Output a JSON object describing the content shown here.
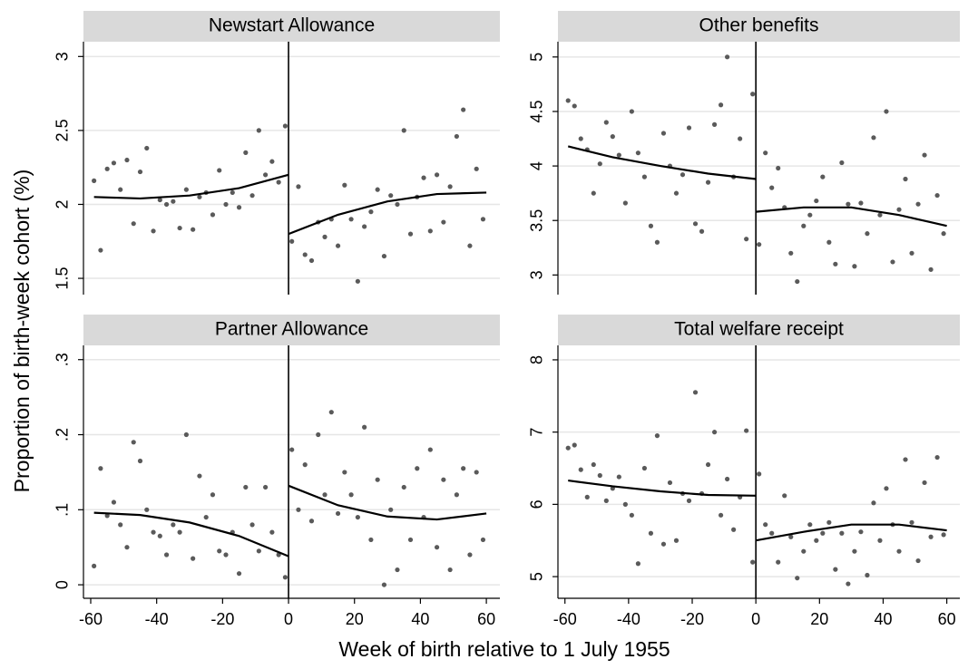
{
  "ylabel": "Proportion of birth-week cohort (%)",
  "xlabel": "Week of birth relative to 1 July 1955",
  "chart_data": [
    {
      "type": "scatter",
      "title": "Newstart Allowance",
      "xlim": [
        -62.2,
        64.1
      ],
      "ylim": [
        1.39,
        3.1
      ],
      "yticks": [
        1.5,
        2,
        2.5,
        3
      ],
      "grid": true,
      "vline": 0,
      "series": [
        {
          "type": "scatter",
          "color": "#5a5a5a",
          "x": [
            -59,
            -57,
            -55,
            -53,
            -51,
            -49,
            -47,
            -45,
            -43,
            -41,
            -39,
            -37,
            -35,
            -33,
            -31,
            -29,
            -27,
            -25,
            -23,
            -21,
            -19,
            -17,
            -15,
            -13,
            -11,
            -9,
            -7,
            -5,
            -3,
            -1,
            1,
            3,
            5,
            7,
            9,
            11,
            13,
            15,
            17,
            19,
            21,
            23,
            25,
            27,
            29,
            31,
            33,
            35,
            37,
            39,
            41,
            43,
            45,
            47,
            49,
            51,
            53,
            55,
            57,
            59
          ],
          "values": [
            2.16,
            1.69,
            2.24,
            2.28,
            2.1,
            2.3,
            1.87,
            2.22,
            2.38,
            1.82,
            2.03,
            2.0,
            2.02,
            1.84,
            2.1,
            1.83,
            2.05,
            2.08,
            1.93,
            2.23,
            2.0,
            2.08,
            1.98,
            2.35,
            2.06,
            2.5,
            2.2,
            2.29,
            2.15,
            2.53,
            1.75,
            2.12,
            1.66,
            1.62,
            1.88,
            1.78,
            1.9,
            1.72,
            2.13,
            1.9,
            1.48,
            1.85,
            1.95,
            2.1,
            1.65,
            2.06,
            2.0,
            2.5,
            1.8,
            2.05,
            2.18,
            1.82,
            2.2,
            1.88,
            2.12,
            2.46,
            2.64,
            1.72,
            2.24,
            1.9
          ]
        },
        {
          "type": "line",
          "color": "#000000",
          "x": [
            -59,
            -45,
            -30,
            -15,
            0
          ],
          "values": [
            2.05,
            2.04,
            2.06,
            2.11,
            2.2
          ]
        },
        {
          "type": "line",
          "color": "#000000",
          "x": [
            0,
            15,
            30,
            45,
            60
          ],
          "values": [
            1.8,
            1.93,
            2.02,
            2.07,
            2.08
          ]
        }
      ]
    },
    {
      "type": "scatter",
      "title": "Other benefits",
      "xlim": [
        -62.2,
        64.1
      ],
      "ylim": [
        2.82,
        5.14
      ],
      "yticks": [
        3,
        3.5,
        4,
        4.5,
        5
      ],
      "grid": true,
      "vline": 0,
      "series": [
        {
          "type": "scatter",
          "color": "#5a5a5a",
          "x": [
            -59,
            -57,
            -55,
            -53,
            -51,
            -49,
            -47,
            -45,
            -43,
            -41,
            -39,
            -37,
            -35,
            -33,
            -31,
            -29,
            -27,
            -25,
            -23,
            -21,
            -19,
            -17,
            -15,
            -13,
            -11,
            -9,
            -7,
            -5,
            -3,
            -1,
            1,
            3,
            5,
            7,
            9,
            11,
            13,
            15,
            17,
            19,
            21,
            23,
            25,
            27,
            29,
            31,
            33,
            35,
            37,
            39,
            41,
            43,
            45,
            47,
            49,
            51,
            53,
            55,
            57,
            59
          ],
          "values": [
            4.6,
            4.55,
            4.25,
            4.15,
            3.75,
            4.02,
            4.4,
            4.27,
            4.1,
            3.66,
            4.5,
            4.12,
            3.9,
            3.45,
            3.3,
            4.3,
            4.0,
            3.75,
            3.92,
            4.35,
            3.47,
            3.4,
            3.85,
            4.38,
            4.56,
            5.0,
            3.9,
            4.25,
            3.33,
            4.66,
            3.28,
            4.12,
            3.8,
            3.98,
            3.62,
            3.2,
            2.94,
            3.45,
            3.55,
            3.68,
            3.9,
            3.3,
            3.1,
            4.03,
            3.65,
            3.08,
            3.66,
            3.38,
            4.26,
            3.55,
            4.5,
            3.12,
            3.6,
            3.88,
            3.2,
            3.65,
            4.1,
            3.05,
            3.73,
            3.38
          ]
        },
        {
          "type": "line",
          "color": "#000000",
          "x": [
            -59,
            -45,
            -30,
            -15,
            0
          ],
          "values": [
            4.18,
            4.08,
            4.0,
            3.93,
            3.88
          ]
        },
        {
          "type": "line",
          "color": "#000000",
          "x": [
            0,
            15,
            30,
            45,
            60
          ],
          "values": [
            3.58,
            3.62,
            3.62,
            3.55,
            3.45
          ]
        }
      ]
    },
    {
      "type": "scatter",
      "title": "Partner Allowance",
      "xlim": [
        -62.2,
        64.1
      ],
      "ylim": [
        -0.018,
        0.319
      ],
      "yticks": [
        0,
        {
          "value": 0.1,
          "label": ".1"
        },
        {
          "value": 0.2,
          "label": ".2"
        },
        {
          "value": 0.3,
          "label": ".3"
        }
      ],
      "xticks": [
        -60,
        -40,
        -20,
        0,
        20,
        40,
        60
      ],
      "grid": true,
      "vline": 0,
      "series": [
        {
          "type": "scatter",
          "color": "#5a5a5a",
          "x": [
            -59,
            -57,
            -55,
            -53,
            -51,
            -49,
            -47,
            -45,
            -43,
            -41,
            -39,
            -37,
            -35,
            -33,
            -31,
            -29,
            -27,
            -25,
            -23,
            -21,
            -19,
            -17,
            -15,
            -13,
            -11,
            -9,
            -7,
            -5,
            -3,
            -1,
            1,
            3,
            5,
            7,
            9,
            11,
            13,
            15,
            17,
            19,
            21,
            23,
            25,
            27,
            29,
            31,
            33,
            35,
            37,
            39,
            41,
            43,
            45,
            47,
            49,
            51,
            53,
            55,
            57,
            59
          ],
          "values": [
            0.025,
            0.155,
            0.092,
            0.11,
            0.08,
            0.05,
            0.19,
            0.165,
            0.1,
            0.07,
            0.065,
            0.04,
            0.08,
            0.07,
            0.2,
            0.035,
            0.145,
            0.09,
            0.12,
            0.045,
            0.04,
            0.07,
            0.015,
            0.13,
            0.08,
            0.045,
            0.13,
            0.07,
            0.04,
            0.01,
            0.18,
            0.1,
            0.16,
            0.085,
            0.2,
            0.12,
            0.23,
            0.095,
            0.15,
            0.12,
            0.09,
            0.21,
            0.06,
            0.14,
            0,
            0.1,
            0.02,
            0.13,
            0.06,
            0.155,
            0.09,
            0.18,
            0.05,
            0.14,
            0.02,
            0.12,
            0.155,
            0.04,
            0.15,
            0.06
          ]
        },
        {
          "type": "line",
          "color": "#000000",
          "x": [
            -59,
            -45,
            -30,
            -15,
            0
          ],
          "values": [
            0.096,
            0.093,
            0.083,
            0.065,
            0.038
          ]
        },
        {
          "type": "line",
          "color": "#000000",
          "x": [
            0,
            15,
            30,
            45,
            60
          ],
          "values": [
            0.132,
            0.106,
            0.091,
            0.087,
            0.095
          ]
        }
      ]
    },
    {
      "type": "scatter",
      "title": "Total welfare receipt",
      "xlim": [
        -62.2,
        64.1
      ],
      "ylim": [
        4.7,
        8.2
      ],
      "yticks": [
        5,
        6,
        7,
        8
      ],
      "xticks": [
        -60,
        -40,
        -20,
        0,
        20,
        40,
        60
      ],
      "grid": true,
      "vline": 0,
      "series": [
        {
          "type": "scatter",
          "color": "#5a5a5a",
          "x": [
            -59,
            -57,
            -55,
            -53,
            -51,
            -49,
            -47,
            -45,
            -43,
            -41,
            -39,
            -37,
            -35,
            -33,
            -31,
            -29,
            -27,
            -25,
            -23,
            -21,
            -19,
            -17,
            -15,
            -13,
            -11,
            -9,
            -7,
            -5,
            -3,
            -1,
            1,
            3,
            5,
            7,
            9,
            11,
            13,
            15,
            17,
            19,
            21,
            23,
            25,
            27,
            29,
            31,
            33,
            35,
            37,
            39,
            41,
            43,
            45,
            47,
            49,
            51,
            53,
            55,
            57,
            59
          ],
          "values": [
            6.78,
            6.82,
            6.48,
            6.1,
            6.55,
            6.4,
            6.05,
            6.22,
            6.38,
            6.0,
            5.85,
            5.18,
            6.5,
            5.6,
            6.95,
            5.45,
            6.3,
            5.5,
            6.15,
            6.05,
            7.55,
            6.15,
            6.55,
            7.0,
            5.85,
            6.35,
            5.65,
            6.1,
            7.02,
            5.2,
            6.42,
            5.72,
            5.6,
            5.2,
            6.12,
            5.55,
            4.98,
            5.35,
            5.72,
            5.5,
            5.6,
            5.75,
            5.1,
            5.6,
            4.9,
            5.35,
            5.62,
            5.02,
            6.02,
            5.5,
            6.22,
            5.72,
            5.35,
            6.62,
            5.75,
            5.22,
            6.3,
            5.55,
            6.65,
            5.58
          ]
        },
        {
          "type": "line",
          "color": "#000000",
          "x": [
            -59,
            -45,
            -30,
            -15,
            0
          ],
          "values": [
            6.33,
            6.25,
            6.18,
            6.13,
            6.12
          ]
        },
        {
          "type": "line",
          "color": "#000000",
          "x": [
            0,
            15,
            30,
            45,
            60
          ],
          "values": [
            5.5,
            5.62,
            5.72,
            5.72,
            5.64
          ]
        }
      ]
    }
  ]
}
